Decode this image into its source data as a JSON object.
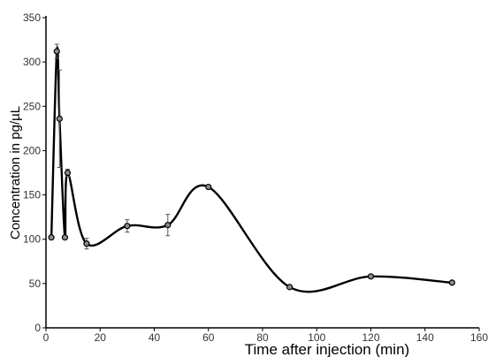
{
  "chart_data": {
    "type": "line",
    "title": "",
    "xlabel": "Time after injection (min)",
    "ylabel": "Concentration in pg/µL",
    "xlim": [
      0,
      160
    ],
    "ylim": [
      0,
      350
    ],
    "x_ticks": [
      0,
      20,
      40,
      60,
      80,
      100,
      120,
      140,
      160
    ],
    "y_ticks": [
      0,
      50,
      100,
      150,
      200,
      250,
      300,
      350
    ],
    "grid": false,
    "legend": "none",
    "line_color": "#000000",
    "marker_fill": "#8c8c8c",
    "series": [
      {
        "x": [
          2,
          4,
          5,
          7,
          8,
          15,
          30,
          45,
          60,
          90,
          120,
          150
        ],
        "y": [
          102,
          312,
          236,
          102,
          175,
          95,
          115,
          116,
          159,
          46,
          58,
          51
        ],
        "error": [
          0,
          8,
          55,
          0,
          4,
          6,
          7,
          12,
          2,
          2,
          2,
          2
        ]
      }
    ]
  }
}
